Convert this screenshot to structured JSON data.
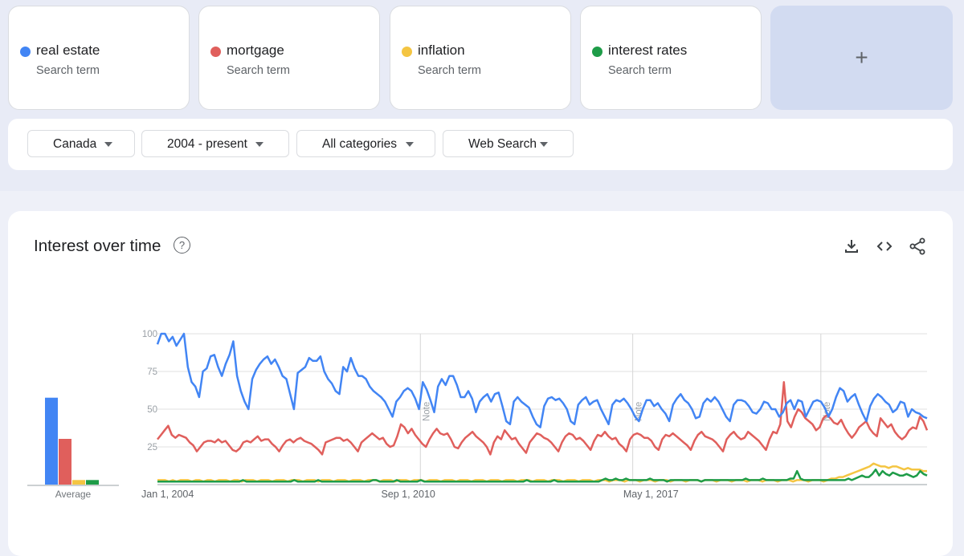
{
  "terms": [
    {
      "name": "real estate",
      "sub": "Search term",
      "color": "#4285f4"
    },
    {
      "name": "mortgage",
      "sub": "Search term",
      "color": "#e05f5c"
    },
    {
      "name": "inflation",
      "sub": "Search term",
      "color": "#f4c542"
    },
    {
      "name": "interest rates",
      "sub": "Search term",
      "color": "#1e9c48"
    }
  ],
  "add_label": "+",
  "filters": {
    "region": "Canada",
    "time": "2004 - present",
    "category": "All categories",
    "search_type": "Web Search"
  },
  "card": {
    "title": "Interest over time",
    "help_glyph": "?",
    "icons": [
      "download-icon",
      "embed-icon",
      "share-icon"
    ]
  },
  "chart_data": [
    {
      "type": "bar",
      "title": "",
      "xlabel": "Average",
      "categories": [
        "real estate",
        "mortgage",
        "inflation",
        "interest rates"
      ],
      "values": [
        57,
        30,
        3,
        3
      ],
      "ylim": [
        0,
        100
      ]
    },
    {
      "type": "line",
      "ylim": [
        0,
        100
      ],
      "yticks": [
        "100",
        "75",
        "50",
        "25"
      ],
      "xtick_labels": [
        "Jan 1, 2004",
        "Sep 1, 2010",
        "May 1, 2017"
      ],
      "notes": [
        "Note",
        "Note",
        "Note"
      ],
      "note_dates": [
        "2011-01",
        "2016-11",
        "2022-01"
      ],
      "x_start": "2004-01",
      "x_end": "2024-12",
      "series": [
        {
          "name": "real estate",
          "color": "#4285f4",
          "values": [
            93,
            100,
            100,
            95,
            98,
            92,
            96,
            100,
            78,
            68,
            65,
            58,
            75,
            77,
            85,
            86,
            78,
            72,
            80,
            86,
            95,
            72,
            62,
            55,
            50,
            70,
            76,
            80,
            83,
            85,
            80,
            83,
            78,
            72,
            70,
            60,
            50,
            74,
            76,
            78,
            84,
            82,
            82,
            85,
            75,
            70,
            67,
            62,
            60,
            78,
            75,
            84,
            77,
            72,
            72,
            70,
            65,
            62,
            60,
            58,
            55,
            50,
            45,
            55,
            58,
            62,
            64,
            62,
            57,
            50,
            68,
            63,
            56,
            48,
            65,
            70,
            66,
            72,
            72,
            66,
            58,
            58,
            62,
            57,
            48,
            55,
            58,
            60,
            55,
            60,
            61,
            52,
            42,
            40,
            55,
            58,
            55,
            53,
            51,
            45,
            40,
            38,
            52,
            57,
            58,
            56,
            57,
            54,
            50,
            42,
            40,
            53,
            56,
            58,
            53,
            55,
            56,
            50,
            45,
            40,
            53,
            56,
            55,
            57,
            54,
            50,
            45,
            42,
            50,
            56,
            56,
            52,
            54,
            50,
            47,
            42,
            53,
            57,
            60,
            56,
            54,
            50,
            44,
            45,
            54,
            57,
            55,
            58,
            55,
            50,
            45,
            42,
            53,
            56,
            56,
            55,
            52,
            48,
            47,
            50,
            55,
            54,
            50,
            50,
            45,
            48,
            54,
            56,
            50,
            56,
            55,
            45,
            50,
            55,
            56,
            55,
            51,
            45,
            50,
            58,
            64,
            62,
            55,
            58,
            60,
            53,
            47,
            42,
            52,
            57,
            60,
            58,
            55,
            53,
            48,
            50,
            55,
            54,
            45,
            50,
            48,
            47,
            45,
            44
          ]
        },
        {
          "name": "mortgage",
          "color": "#e05f5c",
          "values": [
            30,
            33,
            36,
            39,
            33,
            31,
            33,
            32,
            31,
            28,
            26,
            22,
            25,
            28,
            29,
            29,
            28,
            30,
            28,
            29,
            26,
            23,
            22,
            24,
            28,
            29,
            28,
            30,
            32,
            29,
            30,
            30,
            27,
            25,
            22,
            26,
            29,
            30,
            28,
            30,
            31,
            29,
            28,
            27,
            25,
            23,
            20,
            28,
            29,
            30,
            31,
            31,
            29,
            30,
            28,
            25,
            22,
            28,
            30,
            32,
            34,
            32,
            30,
            31,
            27,
            25,
            26,
            32,
            40,
            38,
            34,
            37,
            33,
            30,
            27,
            25,
            30,
            34,
            37,
            34,
            33,
            34,
            30,
            25,
            24,
            28,
            31,
            33,
            35,
            32,
            30,
            28,
            25,
            20,
            28,
            32,
            30,
            36,
            33,
            30,
            31,
            27,
            24,
            21,
            28,
            31,
            34,
            33,
            31,
            30,
            28,
            25,
            22,
            28,
            32,
            34,
            33,
            30,
            31,
            29,
            26,
            23,
            29,
            33,
            32,
            35,
            32,
            30,
            31,
            27,
            25,
            22,
            30,
            33,
            34,
            33,
            31,
            31,
            29,
            25,
            23,
            30,
            33,
            32,
            34,
            32,
            30,
            28,
            26,
            23,
            29,
            33,
            35,
            32,
            31,
            30,
            28,
            25,
            22,
            30,
            33,
            35,
            32,
            30,
            31,
            35,
            33,
            31,
            29,
            26,
            23,
            30,
            35,
            34,
            40,
            68,
            42,
            38,
            45,
            50,
            48,
            44,
            42,
            40,
            36,
            38,
            44,
            46,
            44,
            41,
            40,
            43,
            38,
            34,
            31,
            34,
            38,
            40,
            42,
            37,
            34,
            32,
            44,
            41,
            38,
            40,
            35,
            32,
            30,
            32,
            36,
            38,
            37,
            45,
            42,
            36
          ]
        },
        {
          "name": "inflation",
          "color": "#f4c542",
          "values": [
            3,
            3,
            3,
            2,
            3,
            2,
            3,
            3,
            3,
            2,
            3,
            3,
            2,
            3,
            3,
            2,
            3,
            3,
            3,
            2,
            3,
            3,
            2,
            3,
            3,
            3,
            2,
            3,
            3,
            3,
            2,
            3,
            3,
            3,
            2,
            3,
            3,
            3,
            2,
            3,
            3,
            3,
            2,
            3,
            3,
            3,
            2,
            3,
            3,
            3,
            2,
            3,
            3,
            3,
            2,
            3,
            3,
            3,
            2,
            3,
            3,
            3,
            2,
            3,
            3,
            3,
            2,
            3,
            3,
            3,
            2,
            3,
            3,
            3,
            2,
            3,
            3,
            3,
            2,
            3,
            3,
            3,
            2,
            3,
            3,
            3,
            2,
            3,
            3,
            3,
            2,
            3,
            3,
            3,
            2,
            3,
            3,
            3,
            2,
            3,
            3,
            3,
            2,
            3,
            3,
            3,
            2,
            3,
            3,
            3,
            2,
            3,
            3,
            3,
            2,
            3,
            3,
            3,
            2,
            3,
            3,
            3,
            2,
            3,
            3,
            3,
            2,
            3,
            3,
            3,
            2,
            3,
            3,
            3,
            2,
            3,
            3,
            3,
            2,
            3,
            3,
            3,
            2,
            3,
            3,
            3,
            2,
            3,
            3,
            3,
            2,
            3,
            3,
            3,
            2,
            3,
            3,
            3,
            2,
            3,
            3,
            3,
            2,
            3,
            3,
            3,
            2,
            3,
            3,
            3,
            2,
            3,
            3,
            3,
            2,
            3,
            4,
            4,
            5,
            5,
            6,
            7,
            8,
            9,
            10,
            11,
            12,
            14,
            13,
            12,
            12,
            11,
            12,
            12,
            11,
            10,
            11,
            10,
            10,
            10,
            9,
            9
          ]
        },
        {
          "name": "interest rates",
          "color": "#1e9c48",
          "values": [
            2,
            2,
            2,
            2,
            2,
            2,
            2,
            2,
            2,
            2,
            2,
            2,
            2,
            2,
            2,
            2,
            2,
            2,
            2,
            2,
            2,
            2,
            2,
            2,
            2,
            3,
            2,
            2,
            2,
            2,
            2,
            2,
            2,
            2,
            2,
            2,
            2,
            2,
            2,
            2,
            3,
            2,
            2,
            2,
            2,
            2,
            2,
            3,
            2,
            2,
            2,
            2,
            2,
            2,
            2,
            2,
            2,
            2,
            2,
            2,
            2,
            2,
            2,
            3,
            3,
            2,
            2,
            2,
            2,
            2,
            3,
            2,
            2,
            2,
            2,
            2,
            2,
            3,
            2,
            2,
            2,
            2,
            2,
            2,
            2,
            2,
            2,
            2,
            2,
            2,
            2,
            2,
            2,
            2,
            2,
            2,
            2,
            2,
            2,
            2,
            2,
            2,
            2,
            2,
            2,
            2,
            2,
            2,
            3,
            2,
            2,
            2,
            2,
            2,
            2,
            2,
            3,
            2,
            2,
            2,
            2,
            2,
            2,
            2,
            2,
            2,
            2,
            2,
            2,
            2,
            3,
            4,
            3,
            3,
            4,
            3,
            3,
            4,
            3,
            3,
            3,
            3,
            3,
            3,
            4,
            3,
            3,
            3,
            3,
            2,
            3,
            3,
            3,
            3,
            3,
            3,
            3,
            3,
            3,
            2,
            3,
            3,
            3,
            3,
            3,
            3,
            3,
            3,
            3,
            3,
            3,
            3,
            4,
            3,
            3,
            3,
            3,
            4,
            3,
            3,
            3,
            3,
            3,
            3,
            3,
            4,
            4,
            9,
            4,
            3,
            3,
            3,
            3,
            3,
            3,
            3,
            3,
            3,
            3,
            3,
            3,
            3,
            4,
            3,
            4,
            5,
            6,
            5,
            5,
            7,
            10,
            6,
            9,
            7,
            6,
            8,
            7,
            6,
            6,
            7,
            6,
            5,
            6,
            9,
            7,
            6
          ]
        }
      ]
    }
  ]
}
